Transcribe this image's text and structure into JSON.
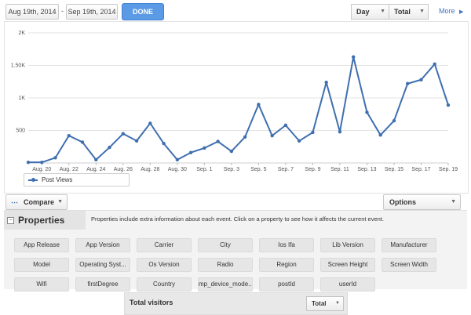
{
  "toolbar": {
    "start_date": "Aug 19th, 2014",
    "separator": "-",
    "end_date": "Sep 19th, 2014",
    "done_label": "DONE",
    "interval_select": "Day",
    "mode_select": "Total",
    "more_label": "More"
  },
  "chart_data": {
    "type": "line",
    "x": [
      "Aug. 19",
      "Aug. 20",
      "Aug. 21",
      "Aug. 22",
      "Aug. 23",
      "Aug. 24",
      "Aug. 25",
      "Aug. 26",
      "Aug. 27",
      "Aug. 28",
      "Aug. 29",
      "Aug. 30",
      "Aug. 31",
      "Sep. 1",
      "Sep. 2",
      "Sep. 3",
      "Sep. 4",
      "Sep. 5",
      "Sep. 6",
      "Sep. 7",
      "Sep. 8",
      "Sep. 9",
      "Sep. 10",
      "Sep. 11",
      "Sep. 12",
      "Sep. 13",
      "Sep. 14",
      "Sep. 15",
      "Sep. 16",
      "Sep. 17",
      "Sep. 18",
      "Sep. 19"
    ],
    "x_tick_labels": [
      "Aug. 20",
      "Aug. 22",
      "Aug. 24",
      "Aug. 26",
      "Aug. 28",
      "Aug. 30",
      "Sep. 1",
      "Sep. 3",
      "Sep. 5",
      "Sep. 7",
      "Sep. 9",
      "Sep. 11",
      "Sep. 13",
      "Sep. 15",
      "Sep. 17",
      "Sep. 19"
    ],
    "y_tick_labels": [
      "500",
      "1K",
      "1.50K",
      "2K"
    ],
    "ylim": [
      0,
      2000
    ],
    "grid": true,
    "series": [
      {
        "name": "Post Views",
        "values": [
          10,
          10,
          80,
          420,
          320,
          50,
          240,
          450,
          340,
          610,
          300,
          50,
          160,
          230,
          330,
          180,
          400,
          900,
          420,
          580,
          340,
          470,
          1240,
          480,
          1630,
          780,
          430,
          650,
          1220,
          1280,
          1520,
          890
        ]
      }
    ],
    "legend_position": "bottom-left",
    "line_color": "#3f6fb0"
  },
  "controls": {
    "compare_label": "Compare",
    "options_label": "Options"
  },
  "properties": {
    "title": "Properties",
    "collapse_symbol": "−",
    "description": "Properties include extra information about each event. Click on a property to see how it affects the current event.",
    "items": [
      "App Release",
      "App Version",
      "Carrier",
      "City",
      "Ios Ifa",
      "Lib Version",
      "Manufacturer",
      "Model",
      "Operating Syst...",
      "Os Version",
      "Radio",
      "Region",
      "Screen Height",
      "Screen Width",
      "Wifi",
      "firstDegree",
      "Country",
      "mp_device_mode...",
      "postId",
      "userId"
    ]
  },
  "total_visitors": {
    "title": "Total visitors",
    "select_value": "Total"
  }
}
